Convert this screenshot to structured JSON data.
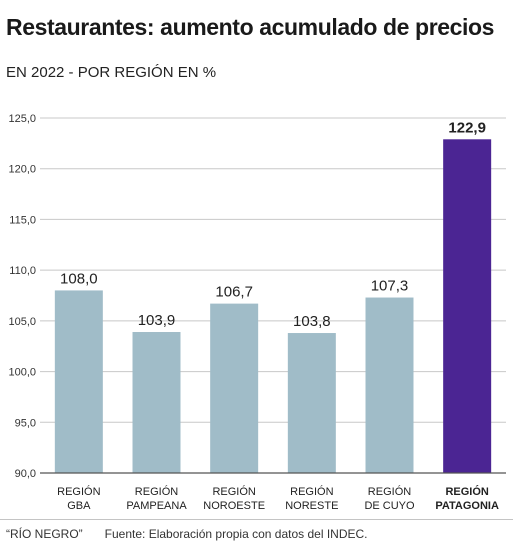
{
  "header": {
    "title": "Restaurantes: aumento acumulado de precios",
    "subtitle": "EN 2022 - POR REGIÓN EN %"
  },
  "footer": {
    "credit": "“RÍO NEGRO”",
    "source": "Fuente: Elaboración propia con datos del INDEC."
  },
  "colors": {
    "bar": "#a0bcc8",
    "highlight": "#4b2593",
    "grid": "#c8c8c8",
    "axis": "#555555"
  },
  "chart_data": {
    "type": "bar",
    "title": "Restaurantes: aumento acumulado de precios",
    "subtitle": "EN 2022 - POR REGIÓN EN %",
    "categories": [
      [
        "REGIÓN",
        "GBA"
      ],
      [
        "REGIÓN",
        "PAMPEANA"
      ],
      [
        "REGIÓN",
        "NOROESTE"
      ],
      [
        "REGIÓN",
        "NORESTE"
      ],
      [
        "REGIÓN",
        "DE CUYO"
      ],
      [
        "REGIÓN",
        "PATAGONIA"
      ]
    ],
    "values": [
      108.0,
      103.9,
      106.7,
      103.8,
      107.3,
      122.9
    ],
    "value_labels": [
      "108,0",
      "103,9",
      "106,7",
      "103,8",
      "107,3",
      "122,9"
    ],
    "highlight_index": 5,
    "ylim": [
      90,
      125
    ],
    "yticks": [
      90,
      95,
      100,
      105,
      110,
      115,
      120,
      125
    ],
    "ytick_labels": [
      "90,0",
      "95,0",
      "100,0",
      "105,0",
      "110,0",
      "115,0",
      "120,0",
      "125,0"
    ],
    "grid": true,
    "xlabel": "",
    "ylabel": ""
  }
}
